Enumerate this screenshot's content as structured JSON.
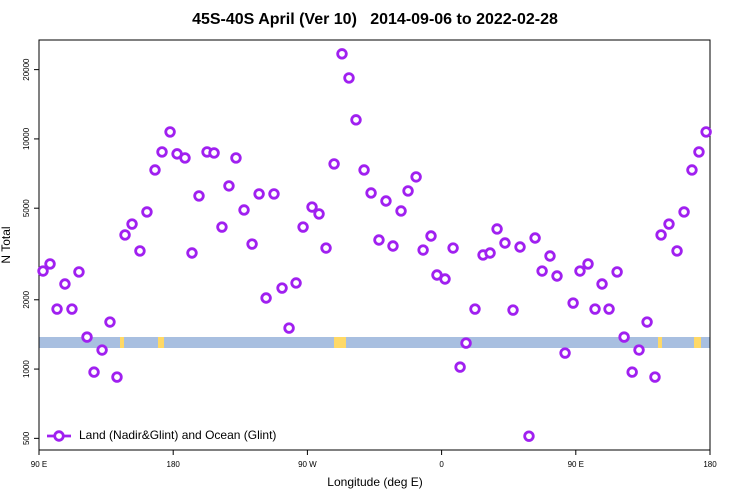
{
  "chart_data": {
    "type": "scatter",
    "title": "45S-40S April (Ver 10)   2014-09-06 to 2022-02-28",
    "xlabel": "Longitude (deg E)",
    "ylabel": "N Total",
    "ylog": true,
    "grid": false,
    "legend": "bottom-left",
    "xlim": [
      90,
      540
    ],
    "ylim": [
      445,
      26900
    ],
    "xticks": [
      {
        "value": 90,
        "label": "90 E"
      },
      180,
      {
        "value": 270,
        "label": "90 W"
      },
      {
        "value": 360,
        "label": "0"
      },
      {
        "value": 450,
        "label": "90 E"
      },
      {
        "value": 540,
        "label": "180"
      }
    ],
    "yticks": [
      500,
      1000,
      2000,
      5000,
      10000,
      20000
    ],
    "series": [
      {
        "name": "Land (Nadir&Glint) and Ocean (Glint)",
        "color": "#a020f0",
        "x": [
          92.7,
          97.4,
          102.1,
          107.4,
          112.1,
          116.8,
          122.2,
          126.9,
          132.3,
          137.6,
          142.3,
          147.7,
          152.4,
          157.7,
          162.4,
          167.8,
          172.5,
          177.9,
          182.6,
          187.9,
          192.6,
          197.3,
          202.7,
          207.4,
          212.7,
          217.4,
          222.1,
          227.5,
          232.9,
          237.6,
          242.3,
          247.6,
          253.0,
          257.7,
          262.4,
          267.1,
          273.1,
          277.8,
          282.5,
          287.9,
          293.2,
          297.9,
          302.6,
          308.0,
          312.7,
          318.0,
          322.7,
          327.4,
          332.8,
          337.5,
          342.9,
          347.6,
          352.9,
          356.9,
          362.3,
          367.7,
          372.4,
          376.4,
          382.4,
          387.8,
          392.5,
          397.2,
          402.5,
          407.9,
          412.6,
          418.6,
          422.7,
          427.4,
          432.7,
          437.4,
          442.8,
          448.2,
          452.8,
          458.2,
          462.9,
          467.6,
          472.3,
          477.7,
          482.4,
          487.8,
          492.4,
          497.8,
          503.1,
          507.2,
          512.5,
          517.9,
          522.6,
          527.9,
          532.6,
          537.4
        ],
        "values": [
          2667,
          2862,
          1823,
          2342,
          1823,
          2642,
          1377,
          970,
          1210,
          1601,
          923,
          3826,
          4267,
          3260,
          4815,
          7328,
          8776,
          10724,
          8610,
          8265,
          3194,
          5653,
          8776,
          8690,
          4141,
          6250,
          8265,
          4912,
          3493,
          5768,
          2036,
          5768,
          2249,
          1507,
          2366,
          4141,
          5059,
          4721,
          3357,
          7787,
          23420,
          18400,
          12100,
          7328,
          5822,
          3637,
          5373,
          3425,
          4863,
          5942,
          6839,
          3290,
          3786,
          2563,
          2462,
          3357,
          1020,
          1297,
          1823,
          3131,
          3194,
          4061,
          3530,
          1805,
          3391,
          511,
          3711,
          2667,
          3099,
          2537,
          1174,
          1936,
          2667,
          2862,
          1823,
          2342,
          1823,
          2642,
          1377,
          970,
          1210,
          1601,
          923,
          3826,
          4267,
          3260,
          4815,
          7328,
          8776,
          10724
        ]
      }
    ]
  }
}
